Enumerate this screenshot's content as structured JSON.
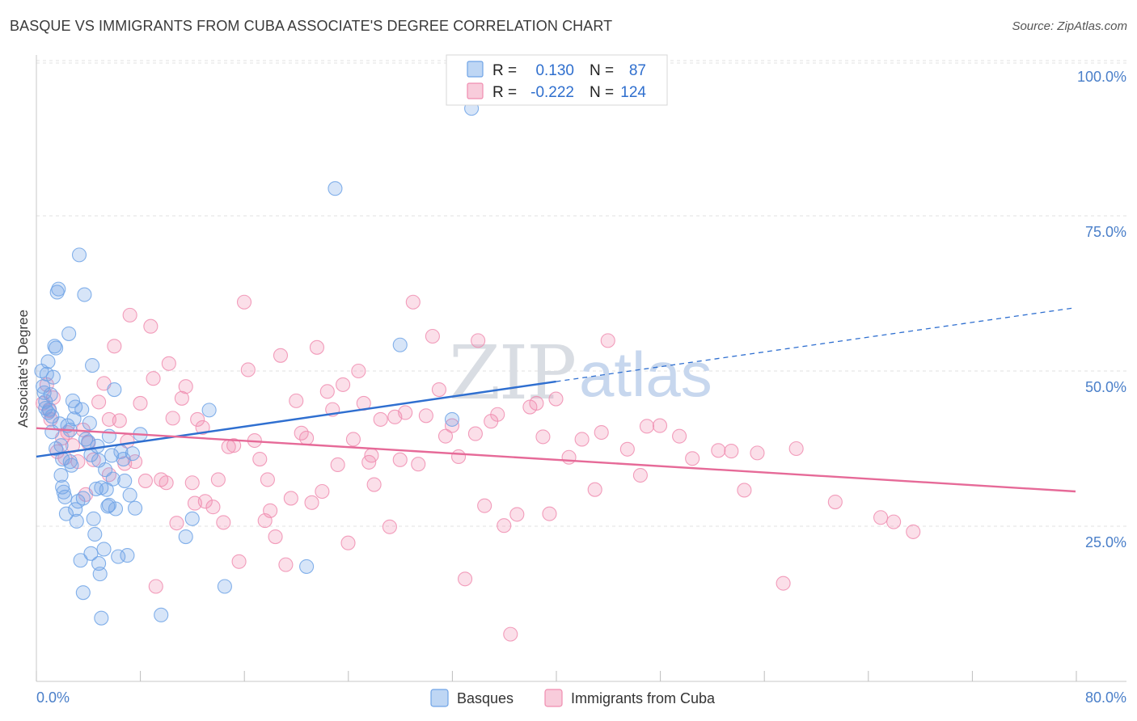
{
  "title": "BASQUE VS IMMIGRANTS FROM CUBA ASSOCIATE'S DEGREE CORRELATION CHART",
  "source": "Source: ZipAtlas.com",
  "watermark": {
    "part1": "ZIP",
    "part2": "atlas"
  },
  "legend_top": [
    {
      "r_label": "R =",
      "r_value": "0.130",
      "n_label": "N =",
      "n_value": "87",
      "color": "#6fa3e6"
    },
    {
      "r_label": "R =",
      "r_value": "-0.222",
      "n_label": "N =",
      "n_value": "124",
      "color": "#f08db0"
    }
  ],
  "legend_bottom": [
    {
      "label": "Basques",
      "color": "#6fa3e6"
    },
    {
      "label": "Immigrants from Cuba",
      "color": "#f08db0"
    }
  ],
  "chart_data": {
    "type": "scatter",
    "title": "BASQUE VS IMMIGRANTS FROM CUBA ASSOCIATE'S DEGREE CORRELATION CHART",
    "xlabel": "",
    "ylabel": "Associate's Degree",
    "xlim": [
      0,
      80
    ],
    "ylim": [
      0,
      105
    ],
    "x_tick_labels": [
      "0.0%",
      "80.0%"
    ],
    "y_ticks": [
      25,
      50,
      75,
      100
    ],
    "y_tick_labels": [
      "25.0%",
      "50.0%",
      "75.0%",
      "100.0%"
    ],
    "grid": true,
    "legend_position": "top-center",
    "series": [
      {
        "name": "Basques",
        "color": "#6fa3e6",
        "trend": {
          "x0": 0,
          "y0": 36.2,
          "x1": 40,
          "y1": 48.3,
          "x_end": 80,
          "y_end": 60.2
        },
        "points": [
          [
            0.4,
            50.0
          ],
          [
            0.5,
            47.5
          ],
          [
            0.6,
            46.5
          ],
          [
            0.7,
            44.0
          ],
          [
            0.8,
            49.5
          ],
          [
            0.9,
            51.5
          ],
          [
            1.0,
            43.8
          ],
          [
            1.1,
            46.2
          ],
          [
            1.2,
            40.2
          ],
          [
            1.3,
            49.0
          ],
          [
            1.4,
            54.0
          ],
          [
            1.5,
            53.7
          ],
          [
            1.6,
            62.7
          ],
          [
            1.7,
            63.2
          ],
          [
            1.8,
            41.5
          ],
          [
            1.9,
            38.0
          ],
          [
            2.0,
            31.3
          ],
          [
            2.1,
            30.5
          ],
          [
            2.2,
            29.7
          ],
          [
            2.3,
            27.0
          ],
          [
            2.4,
            41.2
          ],
          [
            2.5,
            56.0
          ],
          [
            2.6,
            35.4
          ],
          [
            2.7,
            34.8
          ],
          [
            2.8,
            45.2
          ],
          [
            2.9,
            42.3
          ],
          [
            3.0,
            27.7
          ],
          [
            3.1,
            25.8
          ],
          [
            3.2,
            29.0
          ],
          [
            3.3,
            68.7
          ],
          [
            3.4,
            19.5
          ],
          [
            3.5,
            43.8
          ],
          [
            3.6,
            14.3
          ],
          [
            3.7,
            62.3
          ],
          [
            3.8,
            39.0
          ],
          [
            4.0,
            38.6
          ],
          [
            4.1,
            41.6
          ],
          [
            4.2,
            20.6
          ],
          [
            4.3,
            50.9
          ],
          [
            4.4,
            26.2
          ],
          [
            4.5,
            23.7
          ],
          [
            4.6,
            31.0
          ],
          [
            4.7,
            37.9
          ],
          [
            4.8,
            19.0
          ],
          [
            4.9,
            17.3
          ],
          [
            5.0,
            10.2
          ],
          [
            5.2,
            21.3
          ],
          [
            5.3,
            34.1
          ],
          [
            5.4,
            30.9
          ],
          [
            5.5,
            28.2
          ],
          [
            5.6,
            39.5
          ],
          [
            5.8,
            36.4
          ],
          [
            5.9,
            32.6
          ],
          [
            6.0,
            47.0
          ],
          [
            6.1,
            27.8
          ],
          [
            6.3,
            20.1
          ],
          [
            6.5,
            37.0
          ],
          [
            6.7,
            35.8
          ],
          [
            7.0,
            20.3
          ],
          [
            7.2,
            30.0
          ],
          [
            7.4,
            36.7
          ],
          [
            7.6,
            27.9
          ],
          [
            8.0,
            39.8
          ],
          [
            9.6,
            10.7
          ],
          [
            11.5,
            23.3
          ],
          [
            12.0,
            26.2
          ],
          [
            13.3,
            43.7
          ],
          [
            14.5,
            15.3
          ],
          [
            20.8,
            18.5
          ],
          [
            23.0,
            79.4
          ],
          [
            28.0,
            54.2
          ],
          [
            32.0,
            42.2
          ],
          [
            33.5,
            92.3
          ],
          [
            0.9,
            43.3
          ],
          [
            1.5,
            37.5
          ],
          [
            2.0,
            35.8
          ],
          [
            3.0,
            44.2
          ],
          [
            4.2,
            36.5
          ],
          [
            5.0,
            31.2
          ],
          [
            6.8,
            32.3
          ],
          [
            1.2,
            42.7
          ],
          [
            0.7,
            45.1
          ],
          [
            2.6,
            40.5
          ],
          [
            3.6,
            29.5
          ],
          [
            4.8,
            35.6
          ],
          [
            5.6,
            28.4
          ],
          [
            1.9,
            33.2
          ]
        ]
      },
      {
        "name": "Immigrants from Cuba",
        "color": "#f08db0",
        "trend": {
          "x0": 0,
          "y0": 40.8,
          "x1": 80,
          "y1": 30.6
        },
        "points": [
          [
            0.5,
            44.8
          ],
          [
            0.8,
            47.8
          ],
          [
            1.0,
            43.6
          ],
          [
            1.3,
            45.7
          ],
          [
            1.6,
            37.0
          ],
          [
            2.0,
            39.2
          ],
          [
            2.4,
            40.1
          ],
          [
            2.8,
            38.0
          ],
          [
            3.2,
            35.4
          ],
          [
            3.6,
            40.5
          ],
          [
            4.0,
            38.4
          ],
          [
            4.4,
            35.7
          ],
          [
            4.8,
            45.0
          ],
          [
            5.2,
            48.0
          ],
          [
            5.6,
            42.2
          ],
          [
            6.0,
            54.0
          ],
          [
            6.4,
            42.0
          ],
          [
            6.8,
            35.1
          ],
          [
            7.2,
            59.0
          ],
          [
            7.6,
            35.4
          ],
          [
            8.0,
            44.8
          ],
          [
            8.4,
            32.3
          ],
          [
            8.8,
            57.2
          ],
          [
            9.0,
            48.8
          ],
          [
            9.2,
            15.3
          ],
          [
            9.6,
            32.5
          ],
          [
            10.0,
            32.0
          ],
          [
            10.2,
            51.2
          ],
          [
            10.5,
            42.4
          ],
          [
            10.8,
            25.5
          ],
          [
            11.2,
            45.6
          ],
          [
            11.5,
            47.5
          ],
          [
            12.0,
            32.0
          ],
          [
            12.4,
            42.2
          ],
          [
            12.8,
            40.9
          ],
          [
            13.0,
            29.0
          ],
          [
            13.6,
            28.1
          ],
          [
            14.0,
            32.5
          ],
          [
            14.4,
            25.6
          ],
          [
            14.8,
            37.8
          ],
          [
            15.2,
            38.0
          ],
          [
            15.6,
            19.3
          ],
          [
            16.0,
            61.1
          ],
          [
            16.3,
            50.2
          ],
          [
            16.8,
            38.8
          ],
          [
            17.2,
            35.8
          ],
          [
            17.6,
            25.9
          ],
          [
            18.0,
            27.5
          ],
          [
            18.4,
            23.3
          ],
          [
            18.8,
            52.5
          ],
          [
            19.2,
            18.8
          ],
          [
            19.6,
            29.5
          ],
          [
            20.0,
            45.2
          ],
          [
            20.4,
            40.0
          ],
          [
            20.8,
            39.2
          ],
          [
            21.2,
            28.8
          ],
          [
            21.6,
            53.8
          ],
          [
            22.0,
            30.6
          ],
          [
            22.4,
            46.7
          ],
          [
            22.8,
            43.8
          ],
          [
            23.2,
            34.9
          ],
          [
            23.6,
            47.8
          ],
          [
            24.0,
            22.3
          ],
          [
            24.4,
            39.0
          ],
          [
            24.8,
            50.0
          ],
          [
            25.2,
            44.8
          ],
          [
            25.6,
            35.3
          ],
          [
            26.0,
            31.7
          ],
          [
            26.5,
            42.2
          ],
          [
            27.2,
            24.9
          ],
          [
            27.6,
            42.6
          ],
          [
            28.0,
            35.7
          ],
          [
            28.4,
            43.3
          ],
          [
            29.0,
            61.1
          ],
          [
            29.4,
            35.0
          ],
          [
            30.0,
            42.8
          ],
          [
            30.5,
            55.6
          ],
          [
            31.0,
            47.0
          ],
          [
            31.5,
            39.5
          ],
          [
            32.0,
            41.2
          ],
          [
            32.5,
            36.2
          ],
          [
            33.0,
            16.5
          ],
          [
            34.0,
            54.9
          ],
          [
            34.5,
            28.3
          ],
          [
            35.0,
            41.9
          ],
          [
            35.5,
            43.0
          ],
          [
            36.0,
            25.1
          ],
          [
            36.5,
            7.6
          ],
          [
            37.0,
            26.9
          ],
          [
            38.0,
            44.2
          ],
          [
            38.5,
            44.8
          ],
          [
            39.0,
            39.4
          ],
          [
            39.5,
            27.0
          ],
          [
            40.0,
            45.5
          ],
          [
            41.0,
            36.1
          ],
          [
            42.0,
            39.0
          ],
          [
            43.0,
            30.9
          ],
          [
            43.5,
            40.1
          ],
          [
            44.0,
            54.9
          ],
          [
            45.5,
            37.4
          ],
          [
            46.5,
            33.2
          ],
          [
            47.0,
            41.1
          ],
          [
            48.0,
            41.2
          ],
          [
            49.5,
            39.5
          ],
          [
            50.5,
            35.9
          ],
          [
            52.5,
            37.2
          ],
          [
            53.5,
            37.1
          ],
          [
            54.5,
            30.8
          ],
          [
            55.5,
            36.8
          ],
          [
            57.5,
            15.8
          ],
          [
            58.5,
            37.5
          ],
          [
            61.5,
            28.9
          ],
          [
            65.0,
            26.4
          ],
          [
            66.0,
            25.7
          ],
          [
            67.5,
            24.1
          ],
          [
            1.1,
            42.2
          ],
          [
            2.2,
            36.0
          ],
          [
            3.8,
            30.1
          ],
          [
            5.6,
            33.3
          ],
          [
            7.0,
            38.7
          ],
          [
            12.2,
            28.7
          ],
          [
            17.8,
            32.5
          ],
          [
            25.8,
            36.4
          ],
          [
            33.8,
            39.9
          ]
        ]
      }
    ]
  }
}
